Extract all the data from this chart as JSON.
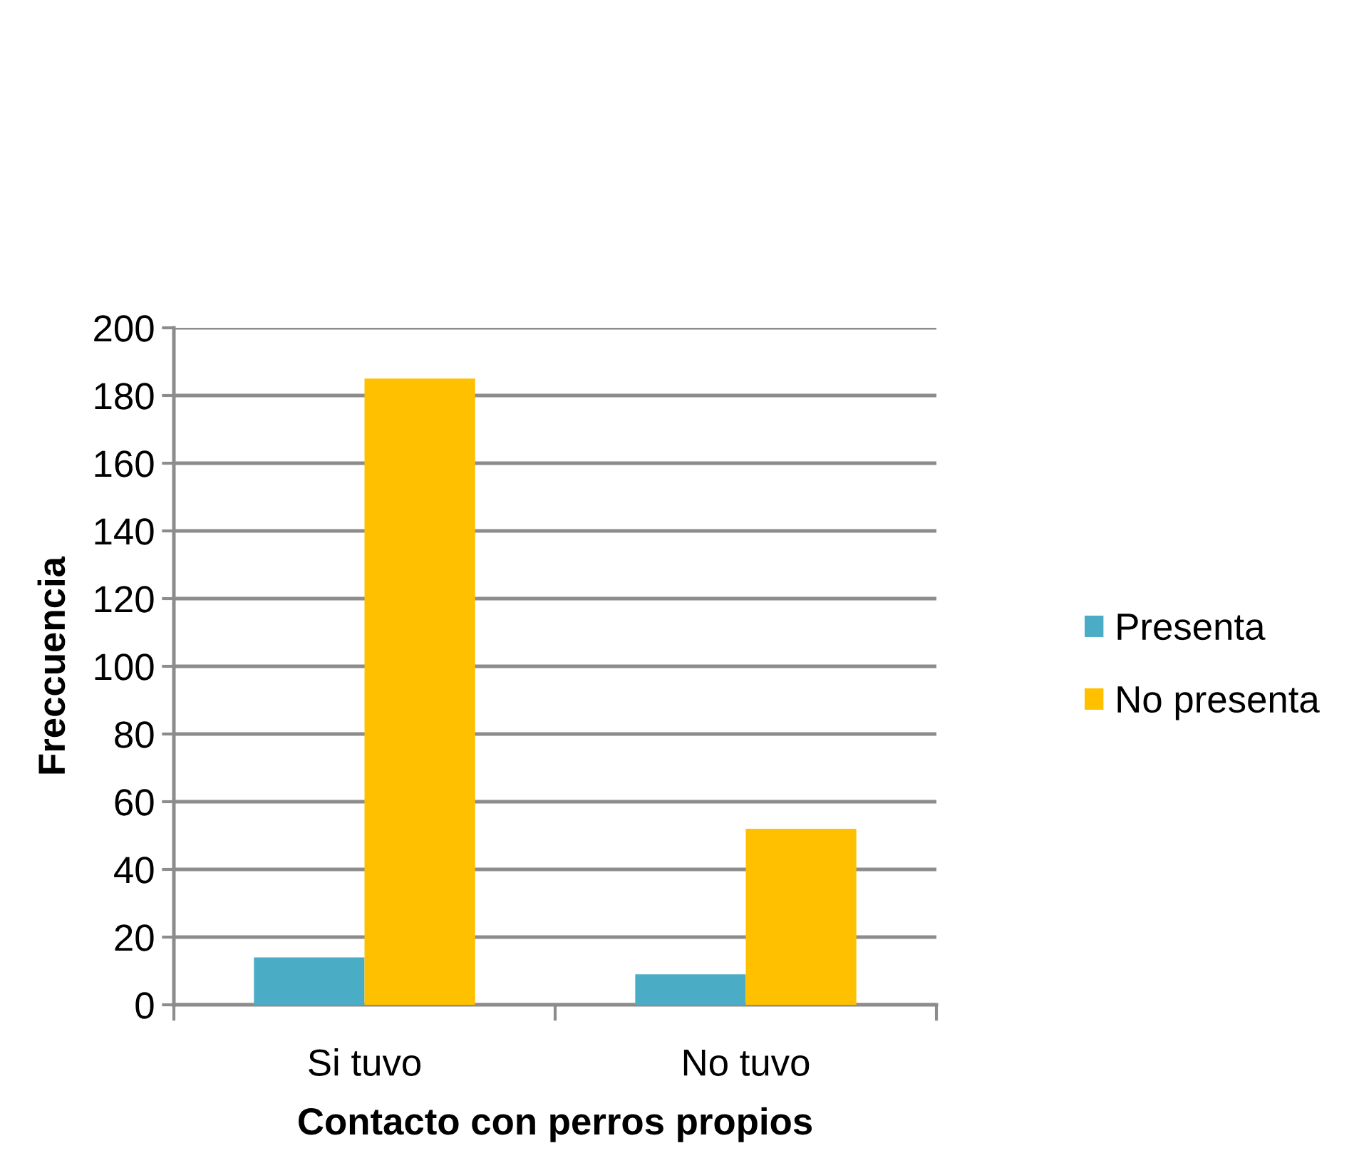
{
  "chart_data": {
    "type": "bar",
    "xlabel": "Contacto con perros propios",
    "ylabel": "Freccuencia",
    "categories": [
      "Si tuvo",
      "No tuvo"
    ],
    "series": [
      {
        "name": "Presenta",
        "color": "#4bacc6",
        "values": [
          14,
          9
        ]
      },
      {
        "name": "No presenta",
        "color": "#ffc000",
        "values": [
          185,
          52
        ]
      }
    ],
    "ylim": [
      0,
      200
    ],
    "yticks": [
      0,
      20,
      40,
      60,
      80,
      100,
      120,
      140,
      160,
      180,
      200
    ],
    "grid": "y",
    "legend": "right"
  }
}
